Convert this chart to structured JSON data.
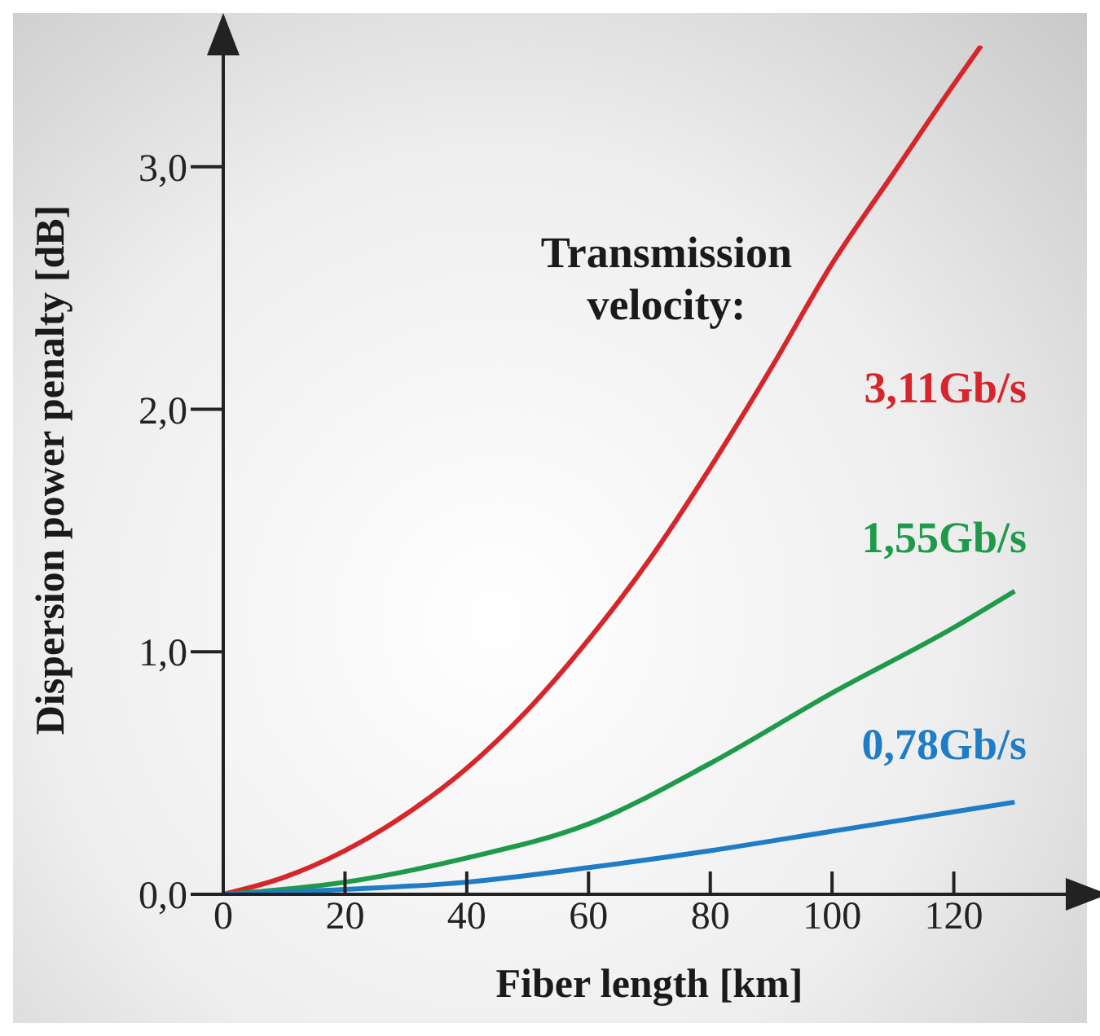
{
  "chart_data": {
    "type": "line",
    "xlabel": "Fiber length [km]",
    "ylabel": "Dispersion power penalty [dB]",
    "annotations": [
      "Transmission velocity:"
    ],
    "series": [
      {
        "name": "3,11Gb/s",
        "color": "#d7262b",
        "x": [
          0,
          10,
          20,
          30,
          40,
          50,
          60,
          70,
          80,
          90,
          100,
          110,
          120,
          124.5
        ],
        "values": [
          0,
          0.07,
          0.18,
          0.33,
          0.52,
          0.76,
          1.05,
          1.38,
          1.76,
          2.17,
          2.6,
          2.97,
          3.34,
          3.5
        ]
      },
      {
        "name": "1,55Gb/s",
        "color": "#1e9a4a",
        "x": [
          0,
          20,
          40,
          60,
          80,
          100,
          120,
          130
        ],
        "values": [
          0,
          0.05,
          0.15,
          0.29,
          0.54,
          0.83,
          1.1,
          1.25
        ]
      },
      {
        "name": "0,78Gb/s",
        "color": "#1f7cc6",
        "x": [
          0,
          20,
          40,
          60,
          80,
          100,
          120,
          130
        ],
        "values": [
          0,
          0.02,
          0.05,
          0.11,
          0.18,
          0.26,
          0.34,
          0.38
        ]
      }
    ],
    "xlim": [
      0,
      140
    ],
    "xticks": [
      0,
      20,
      40,
      60,
      80,
      100,
      120
    ],
    "ylim": [
      0,
      3.5
    ],
    "yticks": [
      {
        "value": 0,
        "label": "0,0"
      },
      {
        "value": 1,
        "label": "1,0"
      },
      {
        "value": 2,
        "label": "2,0"
      },
      {
        "value": 3,
        "label": "3,0"
      }
    ],
    "grid": false,
    "marker": "none",
    "line_style": "solid"
  }
}
